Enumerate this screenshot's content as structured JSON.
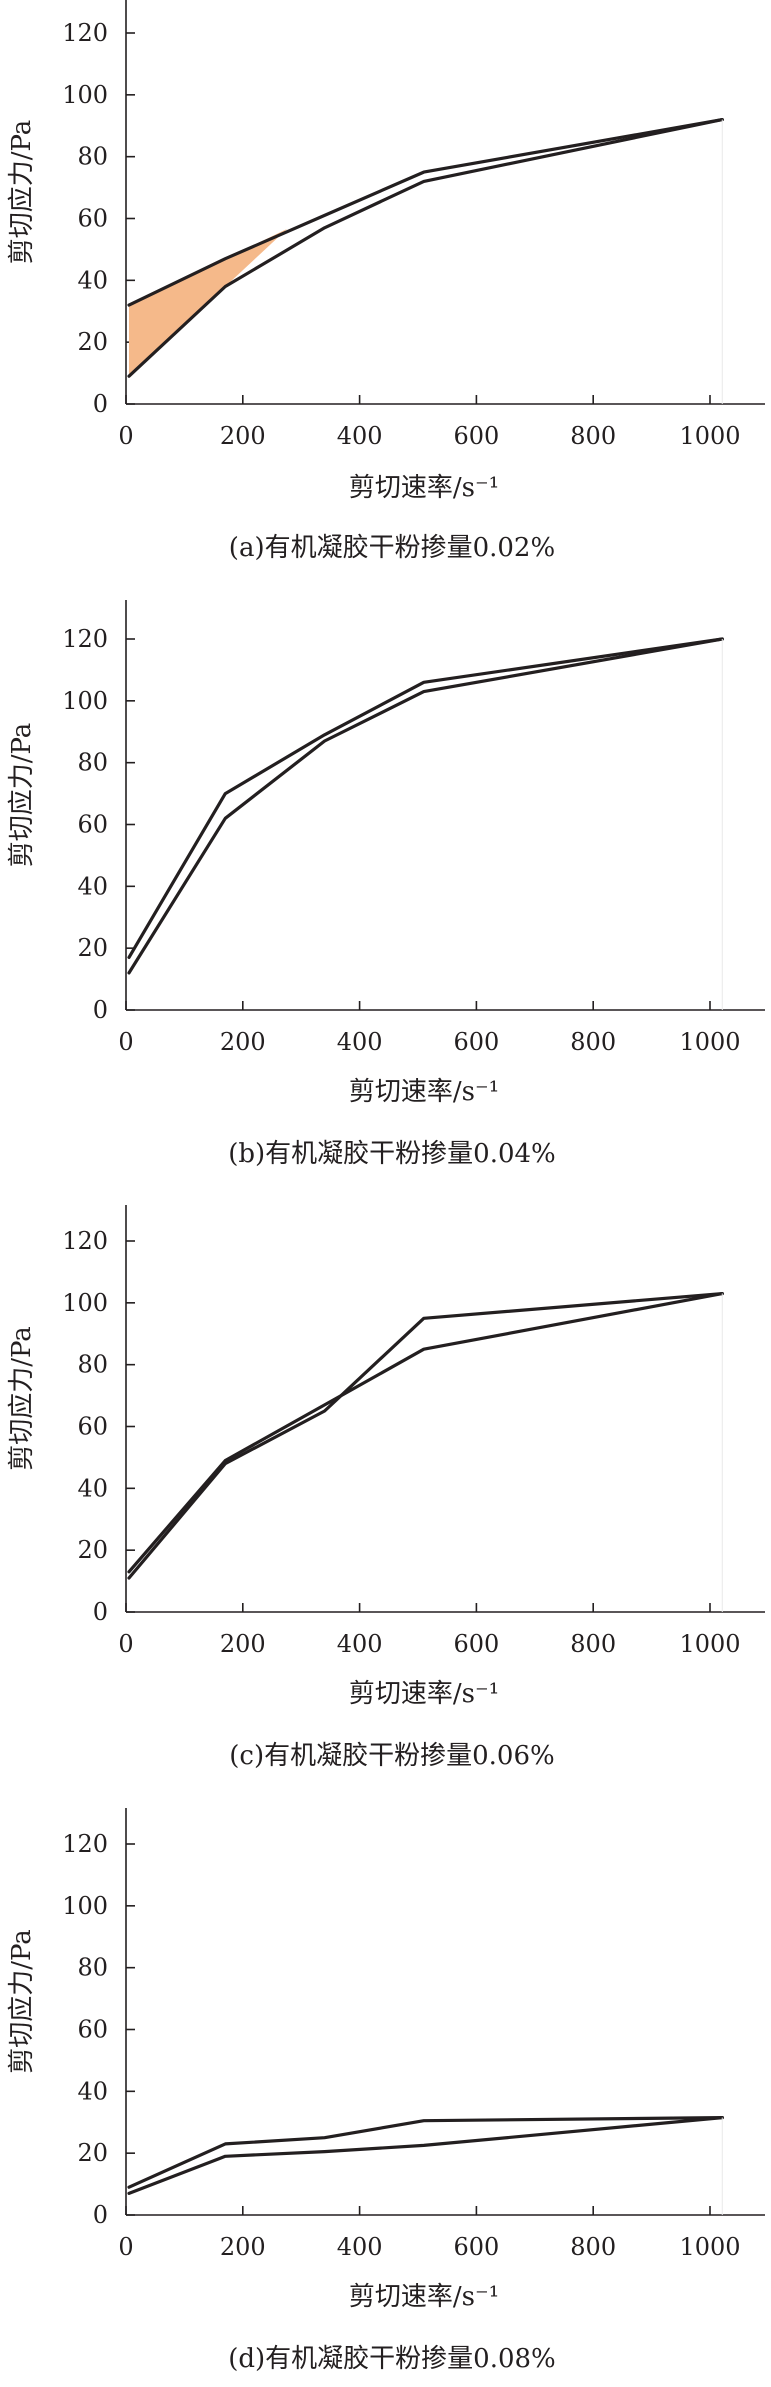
{
  "colors": {
    "axis": "#231f20",
    "curve": "#231f20",
    "loop_fill": "#f5b98a",
    "loop_edge": "#c86a3c"
  },
  "chart_data": [
    {
      "type": "line",
      "panel": "a",
      "caption": "(a)有机凝胶干粉掺量0.02%",
      "xlabel": "剪切速率/s⁻¹",
      "ylabel": "剪切应力/Pa",
      "xlim": [
        0,
        1100
      ],
      "ylim": [
        0,
        130
      ],
      "x_ticks": [
        0,
        200,
        400,
        600,
        800,
        1000
      ],
      "y_ticks": [
        0,
        20,
        40,
        60,
        80,
        100,
        120
      ],
      "x": [
        5.1,
        170,
        340,
        510,
        1021
      ],
      "series": [
        {
          "values": [
            9,
            38,
            57,
            72,
            92
          ]
        },
        {
          "values": [
            32,
            47,
            61,
            75,
            92
          ]
        }
      ],
      "shaded_area": true
    },
    {
      "type": "line",
      "panel": "b",
      "caption": "(b)有机凝胶干粉掺量0.04%",
      "xlabel": "剪切速率/s⁻¹",
      "ylabel": "剪切应力/Pa",
      "xlim": [
        0,
        1100
      ],
      "ylim": [
        0,
        130
      ],
      "x_ticks": [
        0,
        200,
        400,
        600,
        800,
        1000
      ],
      "y_ticks": [
        0,
        20,
        40,
        60,
        80,
        100,
        120
      ],
      "x": [
        5.1,
        170,
        340,
        510,
        1021
      ],
      "series": [
        {
          "values": [
            12,
            62,
            87,
            103,
            120
          ]
        },
        {
          "values": [
            17,
            70,
            89,
            106,
            120
          ]
        }
      ],
      "shaded_area": false
    },
    {
      "type": "line",
      "panel": "c",
      "caption": "(c)有机凝胶干粉掺量0.06%",
      "xlabel": "剪切速率/s⁻¹",
      "ylabel": "剪切应力/Pa",
      "xlim": [
        0,
        1100
      ],
      "ylim": [
        0,
        130
      ],
      "x_ticks": [
        0,
        200,
        400,
        600,
        800,
        1000
      ],
      "y_ticks": [
        0,
        20,
        40,
        60,
        80,
        100,
        120
      ],
      "x": [
        5.1,
        170,
        340,
        510,
        1021
      ],
      "series": [
        {
          "values": [
            11,
            48,
            65,
            95,
            103
          ]
        },
        {
          "values": [
            13,
            49,
            67,
            85,
            103
          ]
        }
      ],
      "shaded_area": false
    },
    {
      "type": "line",
      "panel": "d",
      "caption": "(d)有机凝胶干粉掺量0.08%",
      "xlabel": "剪切速率/s⁻¹",
      "ylabel": "剪切应力/Pa",
      "xlim": [
        0,
        1100
      ],
      "ylim": [
        0,
        130
      ],
      "x_ticks": [
        0,
        200,
        400,
        600,
        800,
        1000
      ],
      "y_ticks": [
        0,
        20,
        40,
        60,
        80,
        100,
        120
      ],
      "x": [
        5.1,
        170,
        340,
        510,
        1021
      ],
      "series": [
        {
          "values": [
            9,
            23,
            25,
            30.5,
            31.5
          ]
        },
        {
          "values": [
            7,
            19,
            20.5,
            22.5,
            31.5
          ]
        }
      ],
      "shaded_area": false
    }
  ]
}
